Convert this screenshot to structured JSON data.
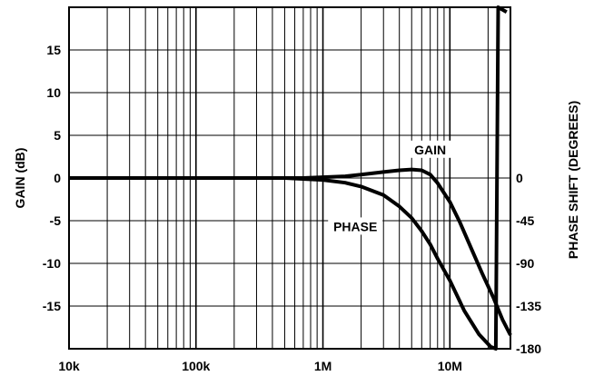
{
  "chart_data": {
    "type": "line",
    "title": "",
    "xlabel": "",
    "ylabel_left": "GAIN (dB)",
    "ylabel_right": "PHASE SHIFT (DEGREES)",
    "x_scale": "log",
    "xlim": [
      10000,
      30000000
    ],
    "x_ticks": [
      {
        "value": 10000,
        "label": "10k"
      },
      {
        "value": 100000,
        "label": "100k"
      },
      {
        "value": 1000000,
        "label": "1M"
      },
      {
        "value": 10000000,
        "label": "10M"
      }
    ],
    "y_left": {
      "ylim": [
        -20,
        20
      ],
      "ticks": [
        {
          "value": 15,
          "label": "15"
        },
        {
          "value": 10,
          "label": "10"
        },
        {
          "value": 5,
          "label": "5"
        },
        {
          "value": 0,
          "label": "0"
        },
        {
          "value": -5,
          "label": "-5"
        },
        {
          "value": -10,
          "label": "-10"
        },
        {
          "value": -15,
          "label": "-15"
        }
      ]
    },
    "y_right": {
      "ticks": [
        {
          "value": 0,
          "label": "0"
        },
        {
          "value": -45,
          "label": "-45"
        },
        {
          "value": -90,
          "label": "-90"
        },
        {
          "value": -135,
          "label": "-135"
        },
        {
          "value": -180,
          "label": "-180"
        }
      ]
    },
    "grid": true,
    "series": [
      {
        "name": "GAIN",
        "axis": "left",
        "points": [
          [
            10000,
            0
          ],
          [
            100000,
            0
          ],
          [
            700000,
            0
          ],
          [
            1000000,
            0.1
          ],
          [
            1500000,
            0.2
          ],
          [
            2000000,
            0.4
          ],
          [
            3000000,
            0.7
          ],
          [
            4000000,
            0.9
          ],
          [
            5000000,
            1.0
          ],
          [
            6000000,
            0.9
          ],
          [
            7000000,
            0.4
          ],
          [
            8000000,
            -0.6
          ],
          [
            10000000,
            -2.8
          ],
          [
            12000000,
            -5.2
          ],
          [
            15000000,
            -8.5
          ],
          [
            18000000,
            -11.2
          ],
          [
            22000000,
            -14.0
          ],
          [
            26000000,
            -16.6
          ],
          [
            30000000,
            -18.4
          ]
        ]
      },
      {
        "name": "PHASE",
        "axis": "right",
        "points": [
          [
            10000,
            0
          ],
          [
            100000,
            0
          ],
          [
            500000,
            0
          ],
          [
            1000000,
            -2
          ],
          [
            1500000,
            -5
          ],
          [
            2000000,
            -9
          ],
          [
            3000000,
            -18
          ],
          [
            4000000,
            -30
          ],
          [
            5000000,
            -42
          ],
          [
            6000000,
            -56
          ],
          [
            7000000,
            -70
          ],
          [
            8000000,
            -85
          ],
          [
            10000000,
            -108
          ],
          [
            13000000,
            -140
          ],
          [
            17000000,
            -165
          ],
          [
            21000000,
            -178
          ],
          [
            23000000,
            -180
          ],
          [
            24000000,
            180
          ],
          [
            28000000,
            175
          ]
        ]
      }
    ],
    "annotations": [
      {
        "text": "GAIN",
        "x": 7000000,
        "y": 3,
        "axis": "left"
      },
      {
        "text": "PHASE",
        "x": 1800000,
        "y": -6,
        "axis": "left"
      }
    ]
  }
}
